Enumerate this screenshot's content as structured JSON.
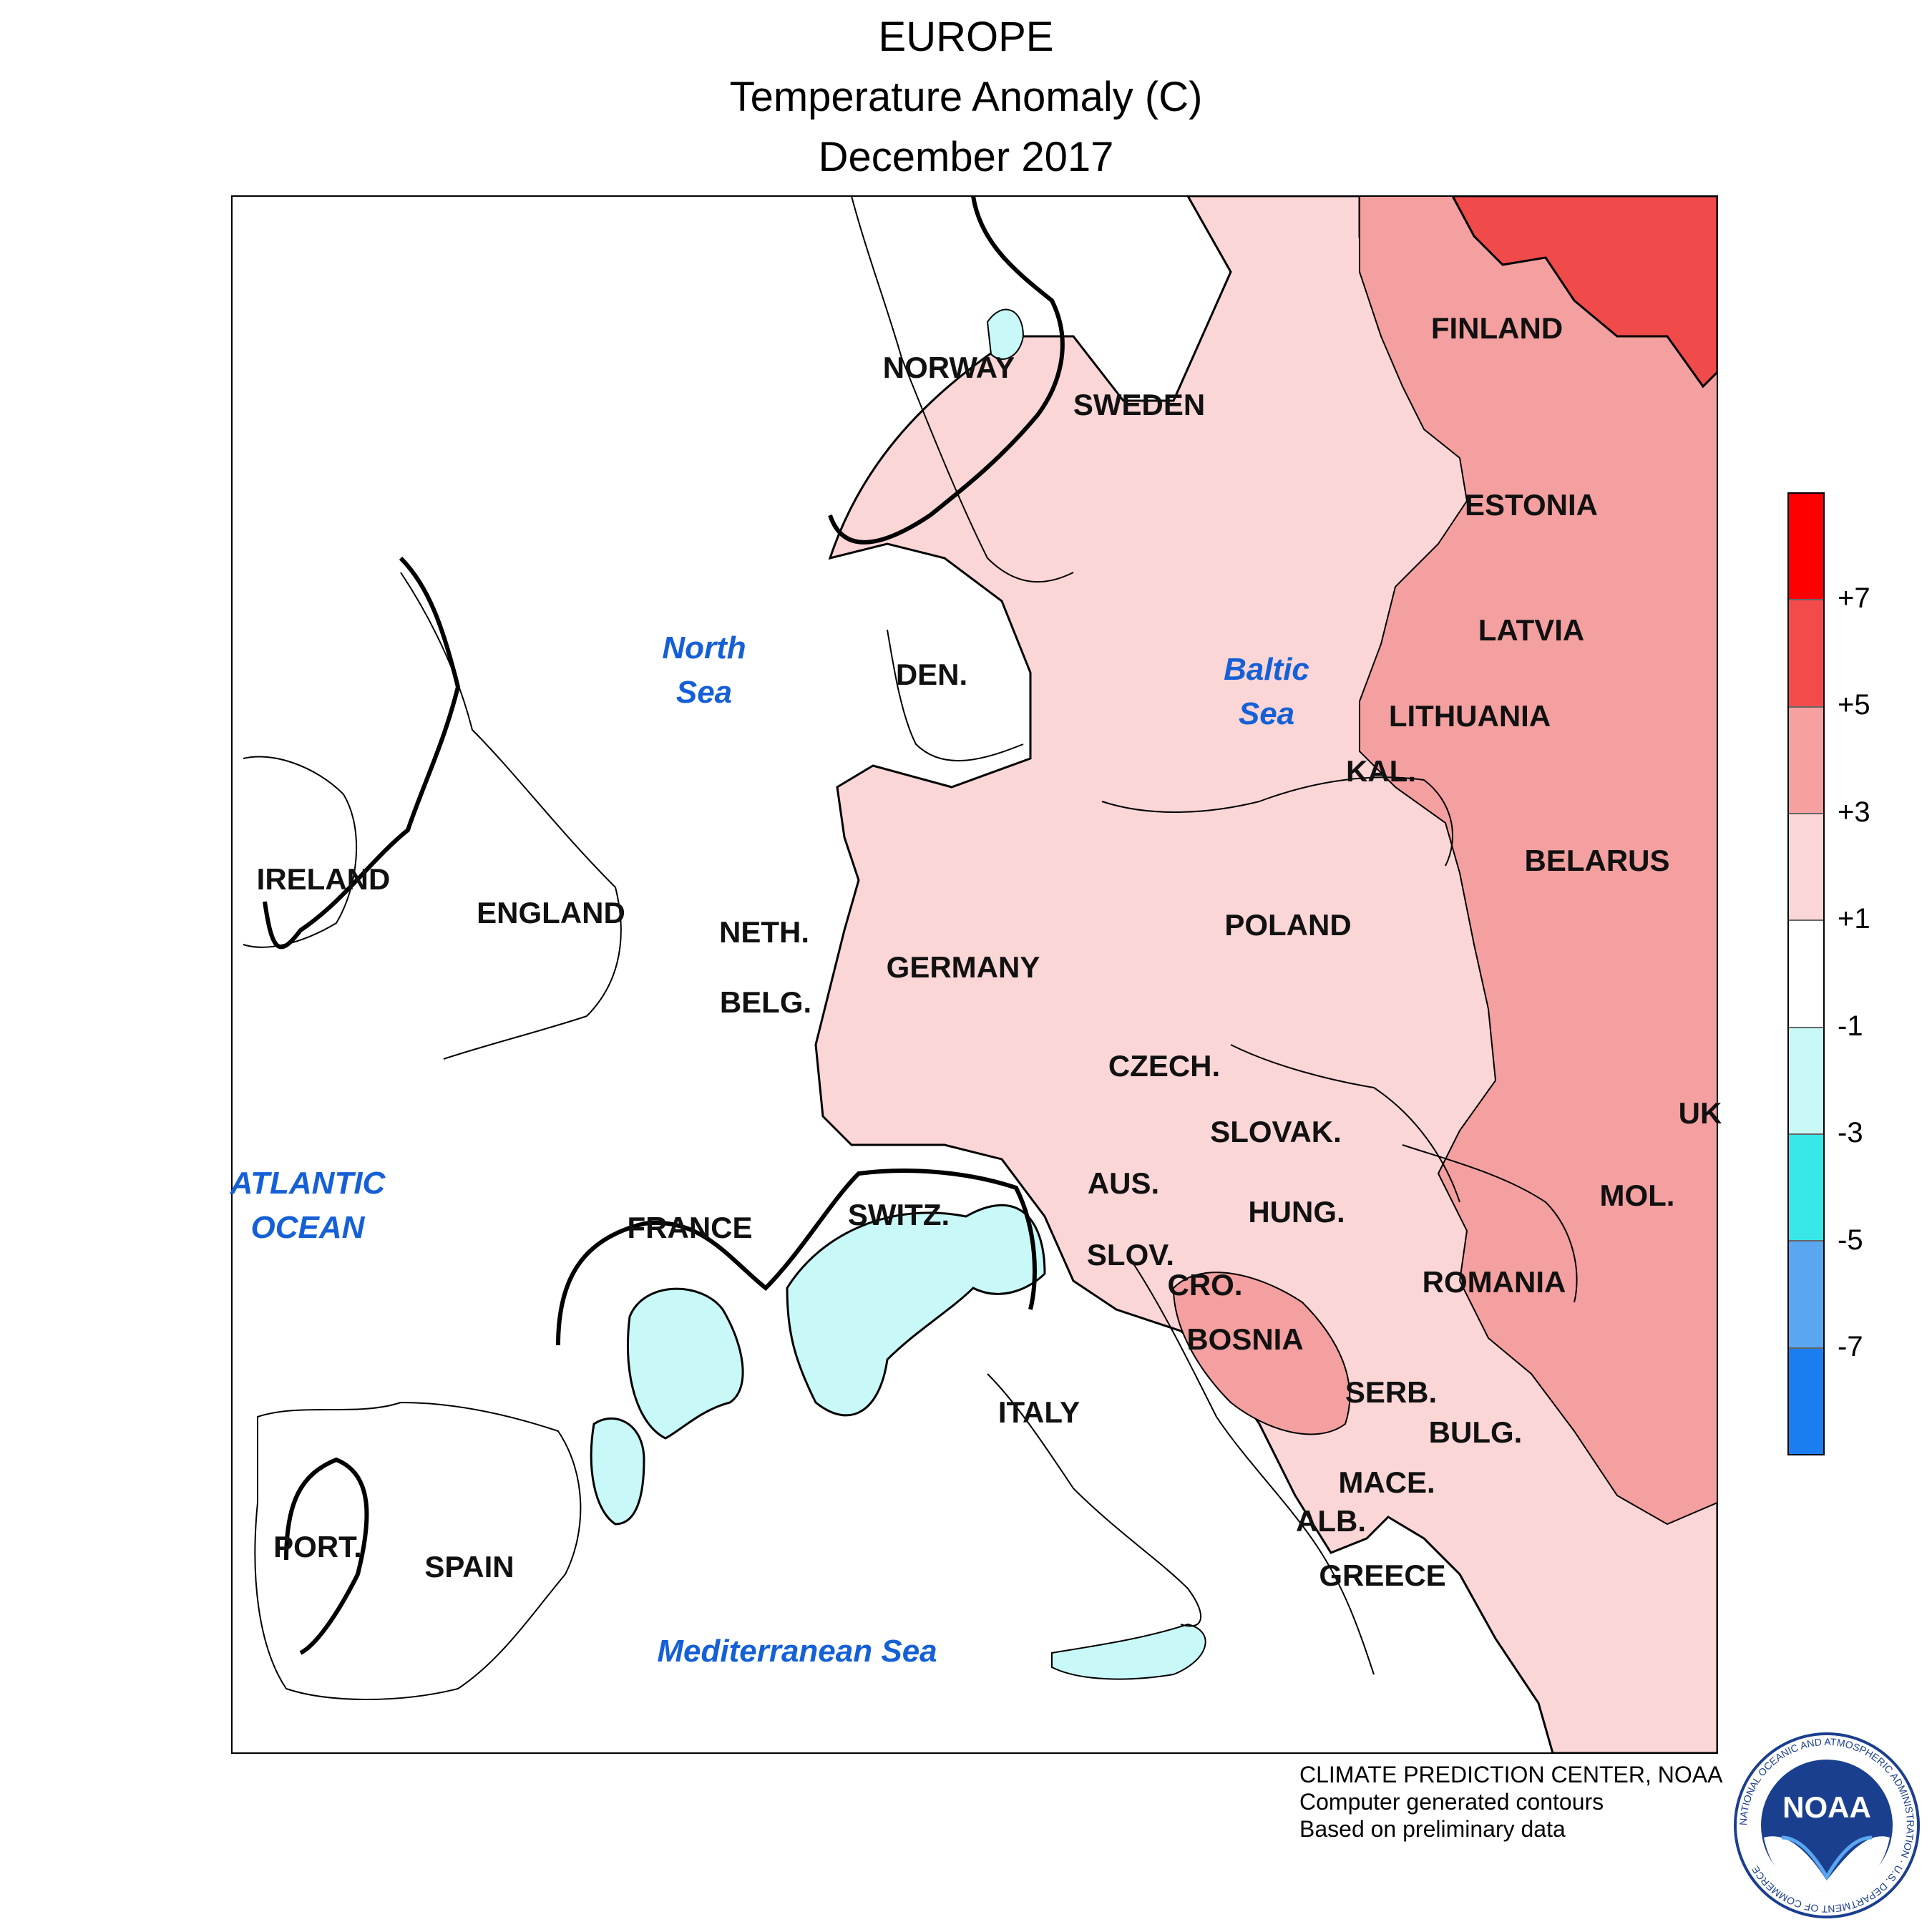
{
  "title": {
    "region": "EUROPE",
    "variable": "Temperature Anomaly (C)",
    "period": "December 2017"
  },
  "colors": {
    "anom_gt_5": "#f04a4a",
    "anom_3_5": "#f4a0a0",
    "anom_1_3": "#fbd6d6",
    "anom_m1_1": "#ffffff",
    "anom_m3_m1": "#c8f8f8",
    "water_label": "#1560d6"
  },
  "legend": {
    "ticks": [
      "+7",
      "+5",
      "+3",
      "+1",
      "-1",
      "-3",
      "-5",
      "-7"
    ],
    "colors": [
      "#ff0000",
      "#f34a4a",
      "#f6a0a0",
      "#fbd6d6",
      "#ffffff",
      "#c8f8f8",
      "#38e8e8",
      "#5aa6f0",
      "#1a7ef0"
    ]
  },
  "countries": [
    "FINLAND",
    "NORWAY",
    "SWEDEN",
    "ESTONIA",
    "LATVIA",
    "LITHUANIA",
    "DEN.",
    "KAL.",
    "IRELAND",
    "ENGLAND",
    "NETH.",
    "BELG.",
    "GERMANY",
    "POLAND",
    "BELARUS",
    "CZECH.",
    "SLOVAK.",
    "UK",
    "FRANCE",
    "SWITZ.",
    "AUS.",
    "HUNG.",
    "MOL.",
    "SLOV.",
    "CRO.",
    "ROMANIA",
    "BOSNIA",
    "SERB.",
    "ITALY",
    "BULG.",
    "MACE.",
    "ALB.",
    "PORT.",
    "SPAIN",
    "GREECE"
  ],
  "water_bodies": {
    "north_sea": [
      "North",
      "Sea"
    ],
    "baltic_sea": [
      "Baltic",
      "Sea"
    ],
    "atlantic": [
      "ATLANTIC",
      "OCEAN"
    ],
    "mediterranean": "Mediterranean Sea"
  },
  "credits": {
    "line1": "CLIMATE PREDICTION CENTER, NOAA",
    "line2": "Computer generated contours",
    "line3": "Based on preliminary data"
  },
  "logo": {
    "text": "NOAA",
    "ring_text": "NATIONAL OCEANIC AND ATMOSPHERIC ADMINISTRATION · U.S. DEPARTMENT OF COMMERCE"
  }
}
